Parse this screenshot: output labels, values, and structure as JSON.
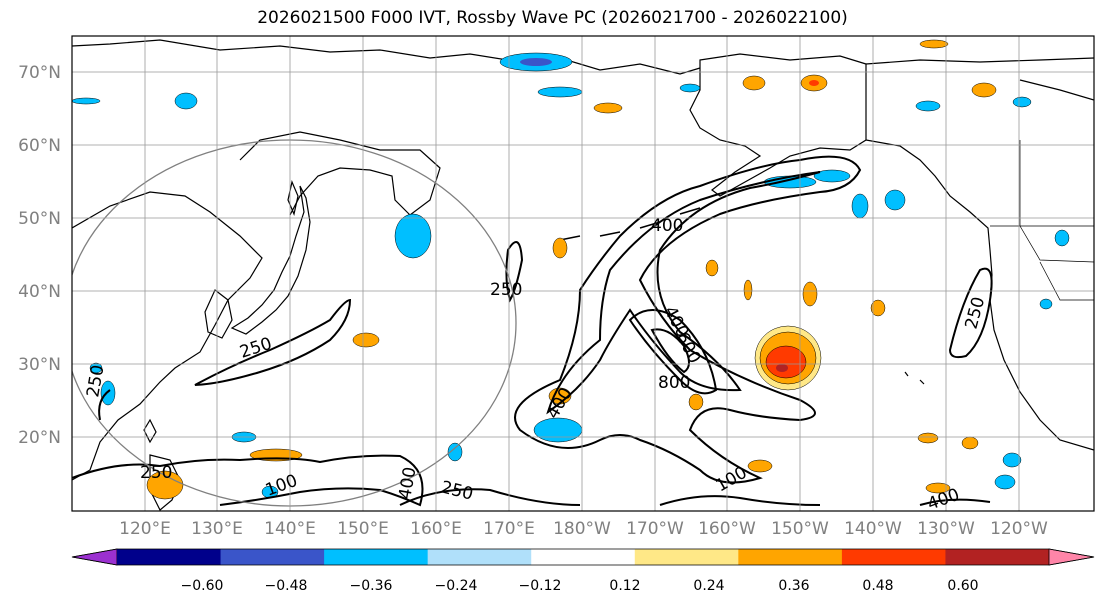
{
  "title": "2026021500 F000 IVT, Rossby Wave PC (2026021700 - 2026022100)",
  "axes": {
    "lat_labels": [
      "70°N",
      "60°N",
      "50°N",
      "40°N",
      "30°N",
      "20°N"
    ],
    "lon_labels": [
      "120°E",
      "130°E",
      "140°E",
      "150°E",
      "160°E",
      "170°E",
      "180°W",
      "170°W",
      "160°W",
      "150°W",
      "140°W",
      "130°W",
      "120°W"
    ]
  },
  "contour_labels": [
    "400",
    "250",
    "250",
    "400",
    "600",
    "800",
    "400",
    "250",
    "250",
    "100",
    "400",
    "250",
    "100",
    "400",
    "250"
  ],
  "colorbar": {
    "colors": [
      "#9b30d0",
      "#00008b",
      "#3a55c9",
      "#00bfff",
      "#b0e0fa",
      "#ffffff",
      "#ffe887",
      "#ffa500",
      "#ff3a00",
      "#b22222",
      "#ff85a8"
    ],
    "ticks": [
      "−0.60",
      "−0.48",
      "−0.36",
      "−0.24",
      "−0.12",
      "0.12",
      "0.24",
      "0.36",
      "0.48",
      "0.60"
    ]
  }
}
